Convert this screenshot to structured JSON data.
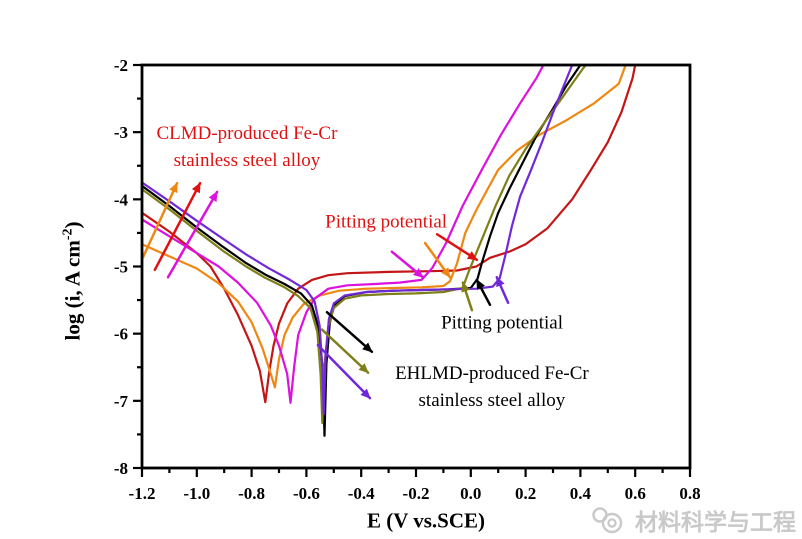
{
  "axes": {
    "x": {
      "title": "E (V vs.SCE)",
      "min": -1.2,
      "max": 0.8,
      "tick_values": [
        -1.2,
        -1.0,
        -0.8,
        -0.6,
        -0.4,
        -0.2,
        0.0,
        0.2,
        0.4,
        0.6,
        0.8
      ],
      "tick_labels": [
        "-1.2",
        "-1.0",
        "-0.8",
        "-0.6",
        "-0.4",
        "-0.2",
        "0.0",
        "0.2",
        "0.4",
        "0.6",
        "0.8"
      ],
      "minor_ticks": [
        -1.1,
        -0.9,
        -0.7,
        -0.5,
        -0.3,
        -0.1,
        0.1,
        0.3,
        0.5,
        0.7
      ]
    },
    "y": {
      "title_pre": "log (i, A cm",
      "title_sup": "-2",
      "title_post": ")",
      "min": -8,
      "max": -2,
      "tick_values": [
        -2,
        -3,
        -4,
        -5,
        -6,
        -7,
        -8
      ],
      "tick_labels": [
        "-2",
        "-3",
        "-4",
        "-5",
        "-6",
        "-7",
        "-8"
      ],
      "minor_ticks": [
        -2.5,
        -3.5,
        -4.5,
        -5.5,
        -6.5,
        -7.5
      ]
    }
  },
  "watermark": {
    "icon": "camera-icon",
    "text": "材料科学与工程",
    "color": "#c9c9c9"
  },
  "chart_data": {
    "type": "line",
    "title": "",
    "xlabel": "E (V vs.SCE)",
    "ylabel": "log (i, A cm^-2)",
    "xlim": [
      -1.2,
      0.8
    ],
    "ylim": [
      -8,
      -2
    ],
    "grid": false,
    "legend_position": "none",
    "series": [
      {
        "name": "CLMD red",
        "group": "CLMD-produced Fe-Cr stainless steel alloy",
        "color": "#c41616",
        "points": [
          [
            -1.2,
            -4.2
          ],
          [
            -1.1,
            -4.48
          ],
          [
            -1.0,
            -4.8
          ],
          [
            -0.95,
            -5.0
          ],
          [
            -0.9,
            -5.33
          ],
          [
            -0.85,
            -5.72
          ],
          [
            -0.8,
            -6.18
          ],
          [
            -0.77,
            -6.55
          ],
          [
            -0.75,
            -7.02
          ],
          [
            -0.735,
            -6.55
          ],
          [
            -0.72,
            -6.18
          ],
          [
            -0.7,
            -5.85
          ],
          [
            -0.67,
            -5.55
          ],
          [
            -0.63,
            -5.33
          ],
          [
            -0.58,
            -5.2
          ],
          [
            -0.52,
            -5.13
          ],
          [
            -0.45,
            -5.1
          ],
          [
            -0.3,
            -5.08
          ],
          [
            -0.15,
            -5.07
          ],
          [
            -0.05,
            -5.06
          ],
          [
            0.02,
            -5.0
          ],
          [
            0.07,
            -4.87
          ],
          [
            0.14,
            -4.78
          ],
          [
            0.2,
            -4.67
          ],
          [
            0.28,
            -4.43
          ],
          [
            0.37,
            -4.0
          ],
          [
            0.44,
            -3.55
          ],
          [
            0.5,
            -3.15
          ],
          [
            0.55,
            -2.7
          ],
          [
            0.59,
            -2.2
          ],
          [
            0.6,
            -2.0
          ]
        ]
      },
      {
        "name": "CLMD orange",
        "group": "CLMD-produced Fe-Cr stainless steel alloy",
        "color": "#ee8812",
        "points": [
          [
            -1.2,
            -4.67
          ],
          [
            -1.1,
            -4.85
          ],
          [
            -1.0,
            -5.03
          ],
          [
            -0.92,
            -5.25
          ],
          [
            -0.85,
            -5.52
          ],
          [
            -0.8,
            -5.83
          ],
          [
            -0.76,
            -6.22
          ],
          [
            -0.73,
            -6.6
          ],
          [
            -0.715,
            -6.8
          ],
          [
            -0.7,
            -6.38
          ],
          [
            -0.68,
            -6.02
          ],
          [
            -0.65,
            -5.76
          ],
          [
            -0.61,
            -5.56
          ],
          [
            -0.55,
            -5.43
          ],
          [
            -0.48,
            -5.36
          ],
          [
            -0.38,
            -5.33
          ],
          [
            -0.28,
            -5.32
          ],
          [
            -0.18,
            -5.31
          ],
          [
            -0.1,
            -5.29
          ],
          [
            -0.076,
            -5.22
          ],
          [
            -0.05,
            -4.95
          ],
          [
            -0.02,
            -4.5
          ],
          [
            0.02,
            -4.16
          ],
          [
            0.06,
            -3.86
          ],
          [
            0.1,
            -3.56
          ],
          [
            0.17,
            -3.27
          ],
          [
            0.25,
            -3.04
          ],
          [
            0.35,
            -2.82
          ],
          [
            0.45,
            -2.57
          ],
          [
            0.54,
            -2.28
          ],
          [
            0.565,
            -2.0
          ]
        ]
      },
      {
        "name": "CLMD magenta",
        "group": "CLMD-produced Fe-Cr stainless steel alloy",
        "color": "#dd11dd",
        "points": [
          [
            -1.2,
            -4.3
          ],
          [
            -1.1,
            -4.55
          ],
          [
            -1.0,
            -4.8
          ],
          [
            -0.92,
            -5.0
          ],
          [
            -0.85,
            -5.24
          ],
          [
            -0.78,
            -5.54
          ],
          [
            -0.73,
            -5.88
          ],
          [
            -0.7,
            -6.18
          ],
          [
            -0.67,
            -6.6
          ],
          [
            -0.658,
            -7.03
          ],
          [
            -0.645,
            -6.5
          ],
          [
            -0.63,
            -6.02
          ],
          [
            -0.6,
            -5.68
          ],
          [
            -0.57,
            -5.48
          ],
          [
            -0.52,
            -5.33
          ],
          [
            -0.45,
            -5.28
          ],
          [
            -0.35,
            -5.26
          ],
          [
            -0.26,
            -5.24
          ],
          [
            -0.18,
            -5.2
          ],
          [
            -0.14,
            -5.02
          ],
          [
            -0.09,
            -4.65
          ],
          [
            -0.03,
            -4.1
          ],
          [
            0.04,
            -3.56
          ],
          [
            0.11,
            -3.04
          ],
          [
            0.18,
            -2.57
          ],
          [
            0.24,
            -2.19
          ],
          [
            0.265,
            -2.0
          ]
        ]
      },
      {
        "name": "EHLMD black",
        "group": "EHLMD-produced Fe-Cr stainless steel alloy",
        "color": "#000000",
        "points": [
          [
            -1.2,
            -3.8
          ],
          [
            -1.1,
            -4.1
          ],
          [
            -1.0,
            -4.42
          ],
          [
            -0.9,
            -4.72
          ],
          [
            -0.82,
            -4.95
          ],
          [
            -0.75,
            -5.12
          ],
          [
            -0.68,
            -5.26
          ],
          [
            -0.62,
            -5.4
          ],
          [
            -0.58,
            -5.58
          ],
          [
            -0.555,
            -5.92
          ],
          [
            -0.54,
            -6.55
          ],
          [
            -0.534,
            -7.52
          ],
          [
            -0.527,
            -6.45
          ],
          [
            -0.515,
            -5.85
          ],
          [
            -0.5,
            -5.58
          ],
          [
            -0.46,
            -5.44
          ],
          [
            -0.38,
            -5.38
          ],
          [
            -0.28,
            -5.36
          ],
          [
            -0.18,
            -5.35
          ],
          [
            -0.08,
            -5.34
          ],
          [
            0.0,
            -5.32
          ],
          [
            0.025,
            -5.18
          ],
          [
            0.04,
            -4.95
          ],
          [
            0.07,
            -4.55
          ],
          [
            0.1,
            -4.2
          ],
          [
            0.14,
            -3.85
          ],
          [
            0.19,
            -3.45
          ],
          [
            0.24,
            -3.05
          ],
          [
            0.3,
            -2.65
          ],
          [
            0.35,
            -2.3
          ],
          [
            0.4,
            -2.0
          ]
        ]
      },
      {
        "name": "EHLMD dark-yellow",
        "group": "EHLMD-produced Fe-Cr stainless steel alloy",
        "color": "#7f7f19",
        "points": [
          [
            -1.2,
            -3.85
          ],
          [
            -1.1,
            -4.15
          ],
          [
            -1.0,
            -4.47
          ],
          [
            -0.9,
            -4.78
          ],
          [
            -0.82,
            -5.0
          ],
          [
            -0.75,
            -5.17
          ],
          [
            -0.68,
            -5.31
          ],
          [
            -0.63,
            -5.44
          ],
          [
            -0.585,
            -5.62
          ],
          [
            -0.56,
            -5.98
          ],
          [
            -0.548,
            -6.6
          ],
          [
            -0.542,
            -7.33
          ],
          [
            -0.535,
            -6.5
          ],
          [
            -0.52,
            -5.9
          ],
          [
            -0.5,
            -5.62
          ],
          [
            -0.46,
            -5.48
          ],
          [
            -0.4,
            -5.43
          ],
          [
            -0.3,
            -5.41
          ],
          [
            -0.2,
            -5.4
          ],
          [
            -0.1,
            -5.38
          ],
          [
            -0.03,
            -5.32
          ],
          [
            -0.01,
            -5.1
          ],
          [
            0.01,
            -4.9
          ],
          [
            0.05,
            -4.5
          ],
          [
            0.09,
            -4.1
          ],
          [
            0.14,
            -3.65
          ],
          [
            0.2,
            -3.25
          ],
          [
            0.27,
            -2.85
          ],
          [
            0.34,
            -2.45
          ],
          [
            0.41,
            -2.05
          ],
          [
            0.42,
            -2.0
          ]
        ]
      },
      {
        "name": "EHLMD purple",
        "group": "EHLMD-produced Fe-Cr stainless steel alloy",
        "color": "#7128d8",
        "points": [
          [
            -1.2,
            -3.75
          ],
          [
            -1.1,
            -4.03
          ],
          [
            -1.0,
            -4.32
          ],
          [
            -0.9,
            -4.6
          ],
          [
            -0.82,
            -4.82
          ],
          [
            -0.74,
            -5.02
          ],
          [
            -0.66,
            -5.2
          ],
          [
            -0.6,
            -5.35
          ],
          [
            -0.57,
            -5.52
          ],
          [
            -0.552,
            -5.88
          ],
          [
            -0.542,
            -6.5
          ],
          [
            -0.537,
            -7.2
          ],
          [
            -0.53,
            -6.35
          ],
          [
            -0.518,
            -5.78
          ],
          [
            -0.5,
            -5.55
          ],
          [
            -0.46,
            -5.43
          ],
          [
            -0.38,
            -5.38
          ],
          [
            -0.28,
            -5.36
          ],
          [
            -0.18,
            -5.35
          ],
          [
            -0.08,
            -5.34
          ],
          [
            0.02,
            -5.33
          ],
          [
            0.08,
            -5.3
          ],
          [
            0.105,
            -5.18
          ],
          [
            0.125,
            -4.85
          ],
          [
            0.15,
            -4.4
          ],
          [
            0.18,
            -3.96
          ],
          [
            0.22,
            -3.56
          ],
          [
            0.26,
            -3.15
          ],
          [
            0.3,
            -2.71
          ],
          [
            0.34,
            -2.3
          ],
          [
            0.37,
            -2.0
          ]
        ]
      }
    ],
    "annotations": {
      "texts": [
        {
          "id": "clmd-label",
          "color": "#e01111",
          "x": -0.817,
          "y": -3.22,
          "lines": [
            "CLMD-produced Fe-Cr",
            "stainless steel alloy"
          ]
        },
        {
          "id": "pitting-clmd-label",
          "color": "#e01111",
          "x": -0.309,
          "y": -4.34,
          "lines": [
            "Pitting potential"
          ]
        },
        {
          "id": "pitting-ehlmd-label",
          "color": "#000000",
          "x": 0.114,
          "y": -5.84,
          "lines": [
            "Pitting potential"
          ]
        },
        {
          "id": "ehlmd-label",
          "color": "#000000",
          "x": 0.077,
          "y": -6.79,
          "lines": [
            "EHLMD-produced Fe-Cr",
            "stainless steel alloy"
          ]
        }
      ],
      "arrows": [
        {
          "color": "#ee8812",
          "from": [
            -1.196,
            -4.86
          ],
          "to": [
            -1.072,
            -3.76
          ]
        },
        {
          "color": "#e01111",
          "from": [
            -1.153,
            -5.05
          ],
          "to": [
            -0.988,
            -3.76
          ]
        },
        {
          "color": "#dd11dd",
          "from": [
            -1.105,
            -5.16
          ],
          "to": [
            -0.926,
            -3.89
          ]
        },
        {
          "color": "#e01111",
          "from": [
            -0.123,
            -4.52
          ],
          "to": [
            0.022,
            -4.9
          ]
        },
        {
          "color": "#dd11dd",
          "from": [
            -0.288,
            -4.78
          ],
          "to": [
            -0.175,
            -5.16
          ]
        },
        {
          "color": "#ee8812",
          "from": [
            -0.167,
            -4.65
          ],
          "to": [
            -0.076,
            -5.16
          ]
        },
        {
          "color": "#7f7f19",
          "from": [
            0.004,
            -5.65
          ],
          "to": [
            -0.029,
            -5.24
          ]
        },
        {
          "color": "#000000",
          "from": [
            0.07,
            -5.57
          ],
          "to": [
            0.022,
            -5.2
          ]
        },
        {
          "color": "#7128d8",
          "from": [
            0.136,
            -5.54
          ],
          "to": [
            0.095,
            -5.16
          ]
        },
        {
          "color": "#000000",
          "from": [
            -0.525,
            -5.68
          ],
          "to": [
            -0.361,
            -6.27
          ]
        },
        {
          "color": "#7f7f19",
          "from": [
            -0.543,
            -5.94
          ],
          "to": [
            -0.375,
            -6.58
          ]
        },
        {
          "color": "#7128d8",
          "from": [
            -0.558,
            -6.17
          ],
          "to": [
            -0.368,
            -6.96
          ]
        }
      ]
    }
  }
}
